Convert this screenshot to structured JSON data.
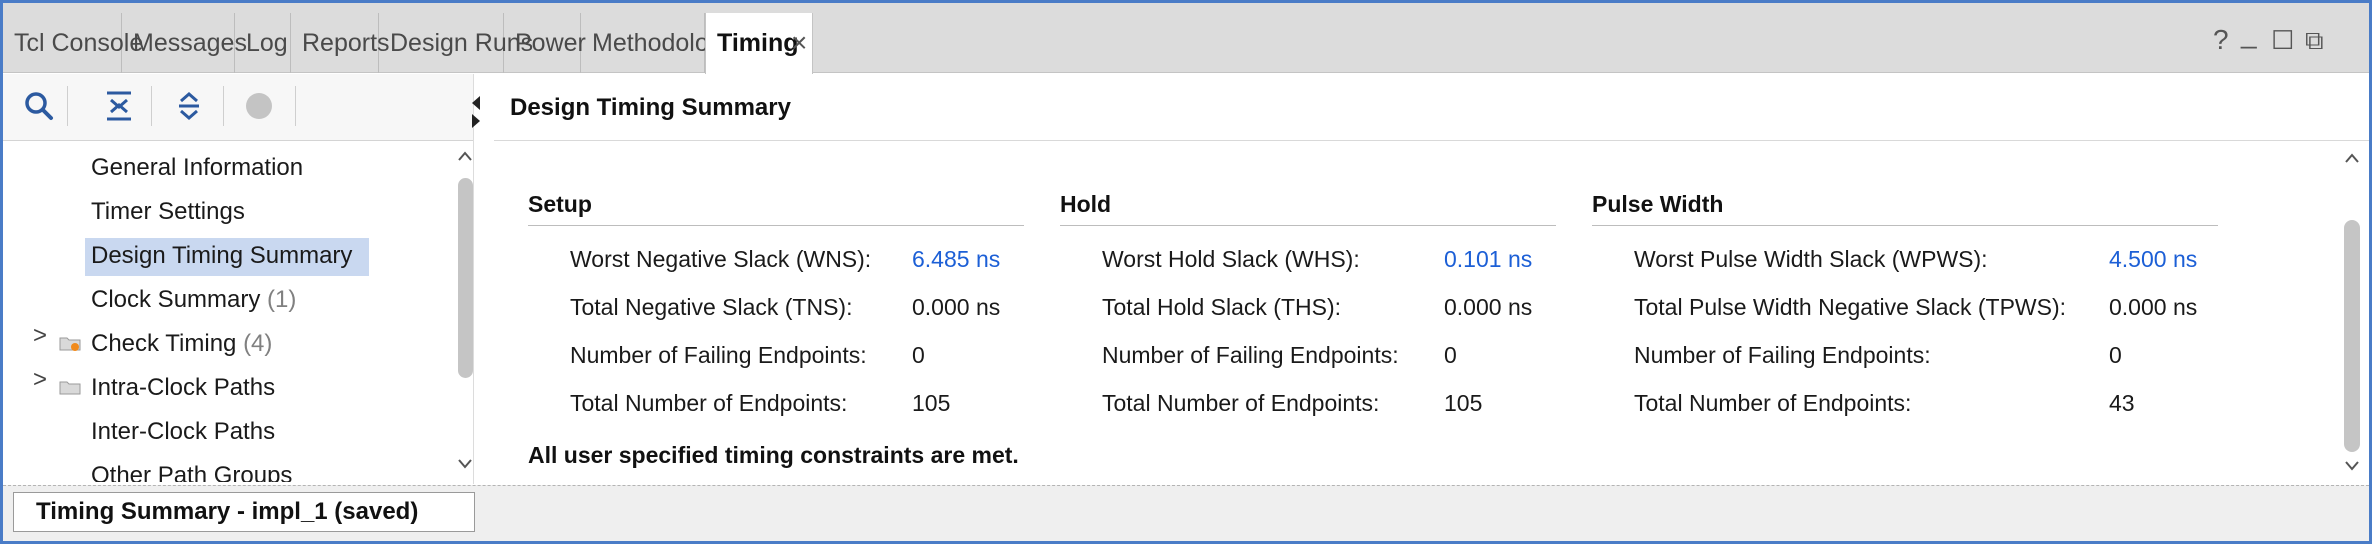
{
  "tabs": [
    {
      "label": "Tcl Console"
    },
    {
      "label": "Messages"
    },
    {
      "label": "Log"
    },
    {
      "label": "Reports"
    },
    {
      "label": "Design Runs"
    },
    {
      "label": "Power"
    },
    {
      "label": "Methodology"
    },
    {
      "label": "Timing",
      "active": true
    }
  ],
  "tab_close_glyph": "×",
  "window_controls": {
    "help": "?",
    "minimize": "_",
    "maximize": "☐",
    "float": "⧉"
  },
  "left_toolbar": {
    "icons": [
      "search-icon",
      "collapse-all-icon",
      "expand-all-icon",
      "status-dot-icon"
    ]
  },
  "tree": {
    "items": [
      {
        "label": "General Information",
        "count": ""
      },
      {
        "label": "Timer Settings",
        "count": ""
      },
      {
        "label": "Design Timing Summary",
        "count": "",
        "selected": true
      },
      {
        "label": "Clock Summary",
        "count": "(1)"
      },
      {
        "label": "Check Timing",
        "count": "(4)",
        "expandable": true,
        "icon": "folder-warning-icon"
      },
      {
        "label": "Intra-Clock Paths",
        "count": "",
        "expandable": true,
        "icon": "folder-icon"
      },
      {
        "label": "Inter-Clock Paths",
        "count": ""
      },
      {
        "label": "Other Path Groups",
        "count": ""
      }
    ],
    "expand_glyph": ">"
  },
  "status": {
    "label": "Timing Summary - impl_1 (saved)"
  },
  "main": {
    "title": "Design Timing Summary",
    "sections": [
      {
        "title": "Setup",
        "rows": [
          {
            "label": "Worst Negative Slack (WNS):",
            "value": "6.485 ns",
            "link": true
          },
          {
            "label": "Total Negative Slack (TNS):",
            "value": "0.000 ns"
          },
          {
            "label": "Number of Failing Endpoints:",
            "value": "0"
          },
          {
            "label": "Total Number of Endpoints:",
            "value": "105"
          }
        ]
      },
      {
        "title": "Hold",
        "rows": [
          {
            "label": "Worst Hold Slack (WHS):",
            "value": "0.101 ns",
            "link": true
          },
          {
            "label": "Total Hold Slack (THS):",
            "value": "0.000 ns"
          },
          {
            "label": "Number of Failing Endpoints:",
            "value": "0"
          },
          {
            "label": "Total Number of Endpoints:",
            "value": "105"
          }
        ]
      },
      {
        "title": "Pulse Width",
        "rows": [
          {
            "label": "Worst Pulse Width Slack (WPWS):",
            "value": "4.500 ns",
            "link": true
          },
          {
            "label": "Total Pulse Width Negative Slack (TPWS):",
            "value": "0.000 ns"
          },
          {
            "label": "Number of Failing Endpoints:",
            "value": "0"
          },
          {
            "label": "Total Number of Endpoints:",
            "value": "43"
          }
        ]
      }
    ],
    "message": "All user specified timing constraints are met."
  },
  "colors": {
    "accent": "#4a7cc7",
    "link": "#1c5fd6",
    "selection": "#c9d8f0"
  }
}
